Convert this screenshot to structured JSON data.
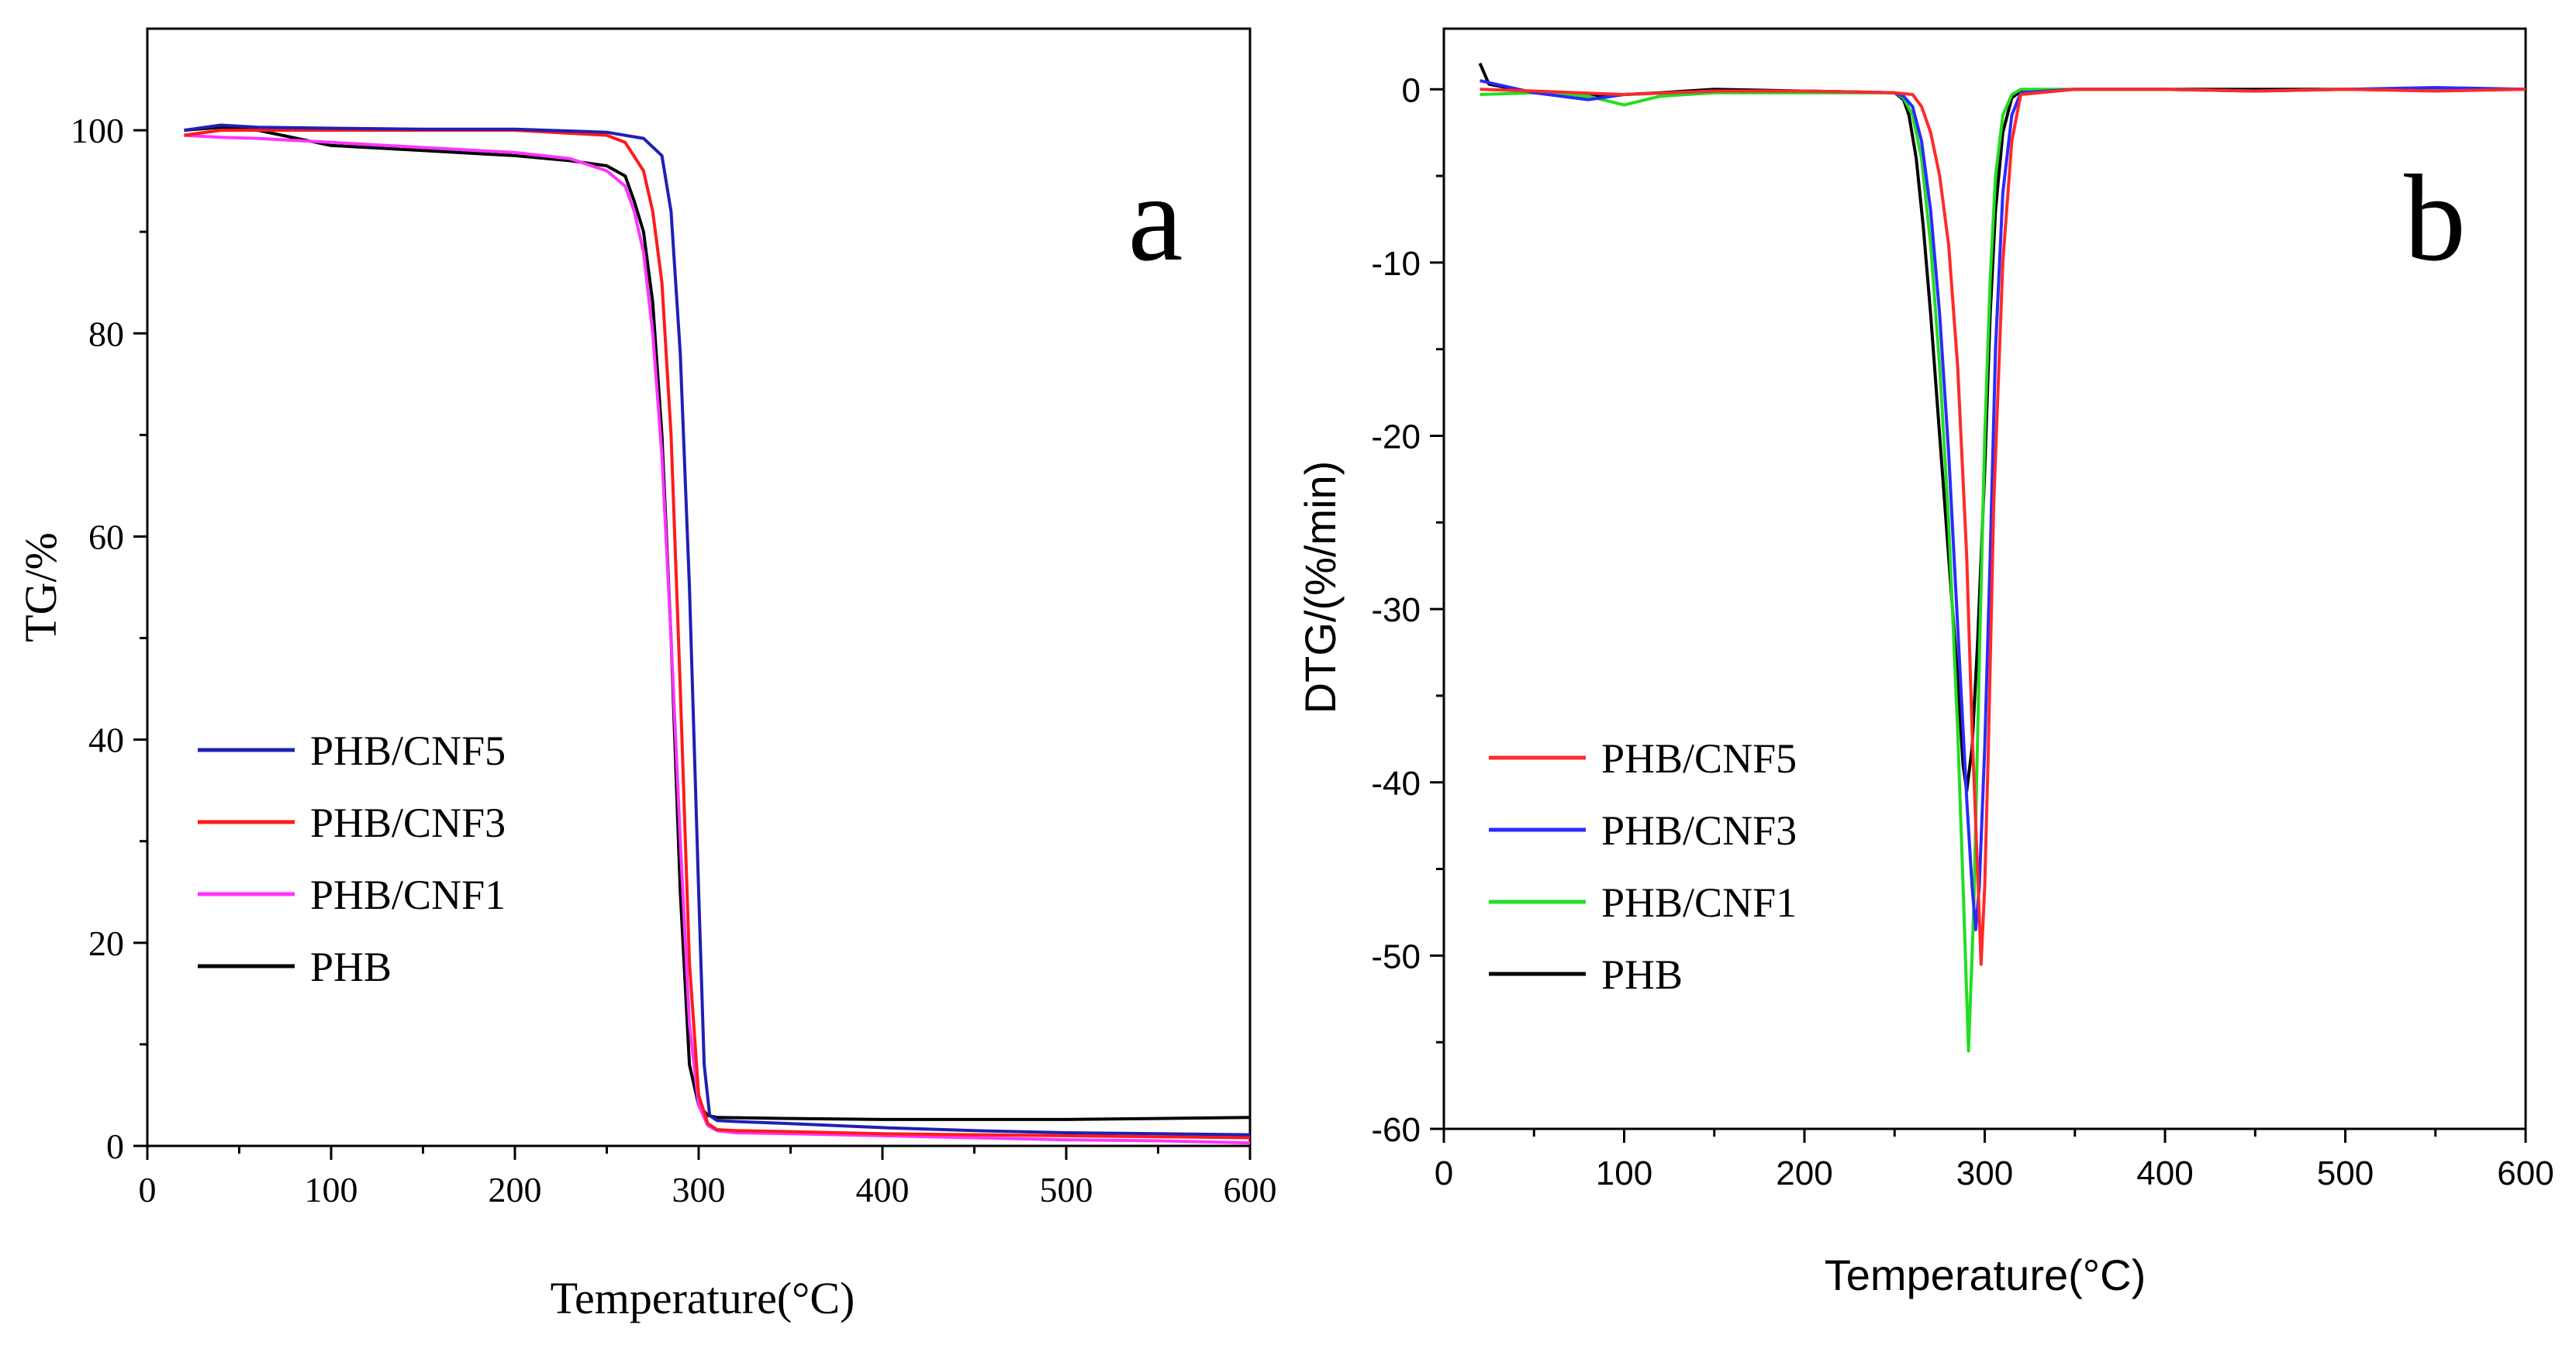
{
  "chart_data": [
    {
      "type": "line",
      "panel_label": "a",
      "xlabel": "Temperature(°C)",
      "ylabel": "TG/%",
      "xlim": [
        0,
        600
      ],
      "ylim": [
        0,
        110
      ],
      "xticks": [
        0,
        100,
        200,
        300,
        400,
        500,
        600
      ],
      "yticks": [
        0,
        20,
        40,
        60,
        80,
        100
      ],
      "legend_position": "lower-left",
      "series": [
        {
          "name": "PHB/CNF5",
          "color": "#1f1fb4",
          "x": [
            20,
            40,
            60,
            100,
            150,
            200,
            250,
            270,
            280,
            285,
            290,
            295,
            300,
            303,
            306,
            310,
            320,
            350,
            400,
            450,
            500,
            550,
            600
          ],
          "y": [
            100,
            100.5,
            100.3,
            100.2,
            100.1,
            100.1,
            99.8,
            99.2,
            97.5,
            92,
            78,
            55,
            25,
            8,
            3,
            2.5,
            2.4,
            2.2,
            1.8,
            1.5,
            1.3,
            1.2,
            1.1
          ]
        },
        {
          "name": "PHB/CNF3",
          "color": "#ff1a1a",
          "x": [
            20,
            40,
            60,
            100,
            150,
            200,
            250,
            260,
            270,
            275,
            280,
            285,
            290,
            295,
            300,
            305,
            310,
            320,
            350,
            400,
            450,
            500,
            550,
            600
          ],
          "y": [
            99.5,
            100,
            100,
            100,
            100,
            100,
            99.5,
            98.8,
            96,
            92,
            85,
            70,
            45,
            18,
            5,
            2.2,
            1.6,
            1.5,
            1.4,
            1.2,
            1.1,
            1.0,
            0.9,
            0.8
          ]
        },
        {
          "name": "PHB/CNF1",
          "color": "#ff33ff",
          "x": [
            20,
            40,
            60,
            100,
            150,
            200,
            230,
            250,
            260,
            265,
            270,
            275,
            280,
            285,
            290,
            295,
            300,
            305,
            310,
            320,
            350,
            400,
            450,
            500,
            550,
            600
          ],
          "y": [
            99.5,
            99.3,
            99.2,
            98.8,
            98.3,
            97.8,
            97.2,
            96,
            94.5,
            92,
            88,
            80,
            68,
            50,
            30,
            12,
            4,
            2,
            1.5,
            1.3,
            1.2,
            1.0,
            0.8,
            0.6,
            0.5,
            0.3
          ]
        },
        {
          "name": "PHB",
          "color": "#000000",
          "x": [
            20,
            40,
            60,
            100,
            150,
            200,
            230,
            250,
            260,
            265,
            270,
            275,
            280,
            285,
            290,
            295,
            300,
            305,
            310,
            350,
            400,
            450,
            500,
            550,
            600
          ],
          "y": [
            100,
            100.3,
            100,
            98.5,
            98,
            97.5,
            97,
            96.5,
            95.5,
            93,
            90,
            83,
            70,
            50,
            25,
            8,
            4,
            3,
            2.8,
            2.7,
            2.6,
            2.6,
            2.6,
            2.7,
            2.8
          ]
        }
      ]
    },
    {
      "type": "line",
      "panel_label": "b",
      "xlabel": "Temperature(°C)",
      "ylabel": "DTG/(%/min)",
      "xlim": [
        0,
        600
      ],
      "ylim": [
        -60,
        3.5
      ],
      "xticks": [
        0,
        100,
        200,
        300,
        400,
        500,
        600
      ],
      "yticks": [
        0,
        -10,
        -20,
        -30,
        -40,
        -50,
        -60
      ],
      "legend_position": "lower-left",
      "series": [
        {
          "name": "PHB/CNF5",
          "color": "#ff2a2a",
          "x": [
            20,
            50,
            100,
            150,
            200,
            250,
            260,
            265,
            270,
            275,
            280,
            285,
            290,
            293,
            296,
            298,
            300,
            302,
            305,
            310,
            315,
            320,
            350,
            400,
            450,
            500,
            550,
            600
          ],
          "y": [
            0,
            -0.1,
            -0.3,
            -0.1,
            -0.1,
            -0.2,
            -0.3,
            -1,
            -2.5,
            -5,
            -9,
            -16,
            -27,
            -37,
            -45,
            -50.5,
            -46,
            -38,
            -24,
            -10,
            -3,
            -0.3,
            0,
            0,
            -0.1,
            0,
            -0.1,
            0
          ]
        },
        {
          "name": "PHB/CNF3",
          "color": "#2a2aff",
          "x": [
            20,
            50,
            80,
            100,
            150,
            200,
            250,
            255,
            260,
            265,
            270,
            275,
            280,
            285,
            290,
            293,
            295,
            297,
            300,
            303,
            306,
            310,
            315,
            320,
            350,
            400,
            450,
            500,
            550,
            600
          ],
          "y": [
            0.5,
            -0.2,
            -0.6,
            -0.3,
            -0.1,
            -0.1,
            -0.2,
            -0.4,
            -1,
            -3,
            -7,
            -13,
            -21,
            -31,
            -41,
            -46,
            -48.5,
            -46,
            -38,
            -27,
            -15,
            -6,
            -1.5,
            -0.2,
            0,
            0,
            -0.1,
            0,
            0.1,
            0
          ]
        },
        {
          "name": "PHB/CNF1",
          "color": "#22dd22",
          "x": [
            20,
            50,
            80,
            100,
            120,
            150,
            200,
            250,
            255,
            260,
            265,
            270,
            275,
            280,
            285,
            288,
            291,
            294,
            297,
            300,
            303,
            306,
            310,
            315,
            320,
            350,
            400,
            450,
            500,
            550,
            600
          ],
          "y": [
            -0.3,
            -0.2,
            -0.4,
            -0.9,
            -0.4,
            -0.2,
            -0.2,
            -0.2,
            -0.5,
            -1.5,
            -4,
            -9,
            -16,
            -25,
            -37,
            -46,
            -55.5,
            -47,
            -33,
            -20,
            -11,
            -5,
            -1.5,
            -0.3,
            0,
            0,
            0,
            -0.1,
            0,
            0,
            0
          ]
        },
        {
          "name": "PHB",
          "color": "#000000",
          "x": [
            20,
            25,
            40,
            60,
            80,
            100,
            120,
            150,
            200,
            250,
            255,
            258,
            262,
            266,
            270,
            275,
            280,
            285,
            288,
            290,
            293,
            296,
            300,
            303,
            306,
            310,
            315,
            320,
            350,
            400,
            450,
            500,
            550,
            600
          ],
          "y": [
            1.5,
            0.3,
            0,
            -0.3,
            -0.4,
            -0.3,
            -0.2,
            0,
            -0.1,
            -0.2,
            -0.6,
            -1.5,
            -4,
            -8,
            -13,
            -20,
            -27,
            -34,
            -39,
            -40.5,
            -38,
            -32,
            -22,
            -13,
            -7,
            -2.5,
            -0.5,
            -0.1,
            0,
            0,
            0,
            0,
            0,
            0
          ]
        }
      ]
    }
  ]
}
